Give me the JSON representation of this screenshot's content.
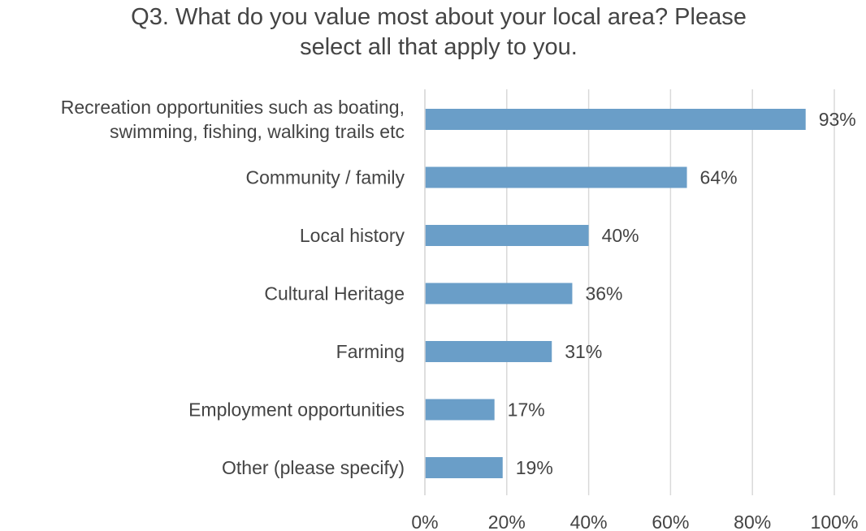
{
  "chart_data": {
    "type": "bar",
    "orientation": "horizontal",
    "title_lines": [
      "Q3. What do you value most about your local area? Please",
      "select all that apply to you."
    ],
    "categories": [
      [
        "Recreation opportunities such as boating,",
        "swimming, fishing, walking trails etc"
      ],
      [
        "Community / family"
      ],
      [
        "Local history"
      ],
      [
        "Cultural Heritage"
      ],
      [
        "Farming"
      ],
      [
        "Employment opportunities"
      ],
      [
        "Other (please specify)"
      ]
    ],
    "values": [
      93,
      64,
      40,
      36,
      31,
      17,
      19
    ],
    "value_labels": [
      "93%",
      "64%",
      "40%",
      "36%",
      "31%",
      "17%",
      "19%"
    ],
    "xlim": [
      0,
      100
    ],
    "x_ticks": [
      0,
      20,
      40,
      60,
      80,
      100
    ],
    "x_tick_labels": [
      "0%",
      "20%",
      "40%",
      "60%",
      "80%",
      "100%"
    ],
    "grid": true,
    "bar_color": "#6a9ec8",
    "text_color": "#444444",
    "grid_color": "#d9d9d9"
  }
}
